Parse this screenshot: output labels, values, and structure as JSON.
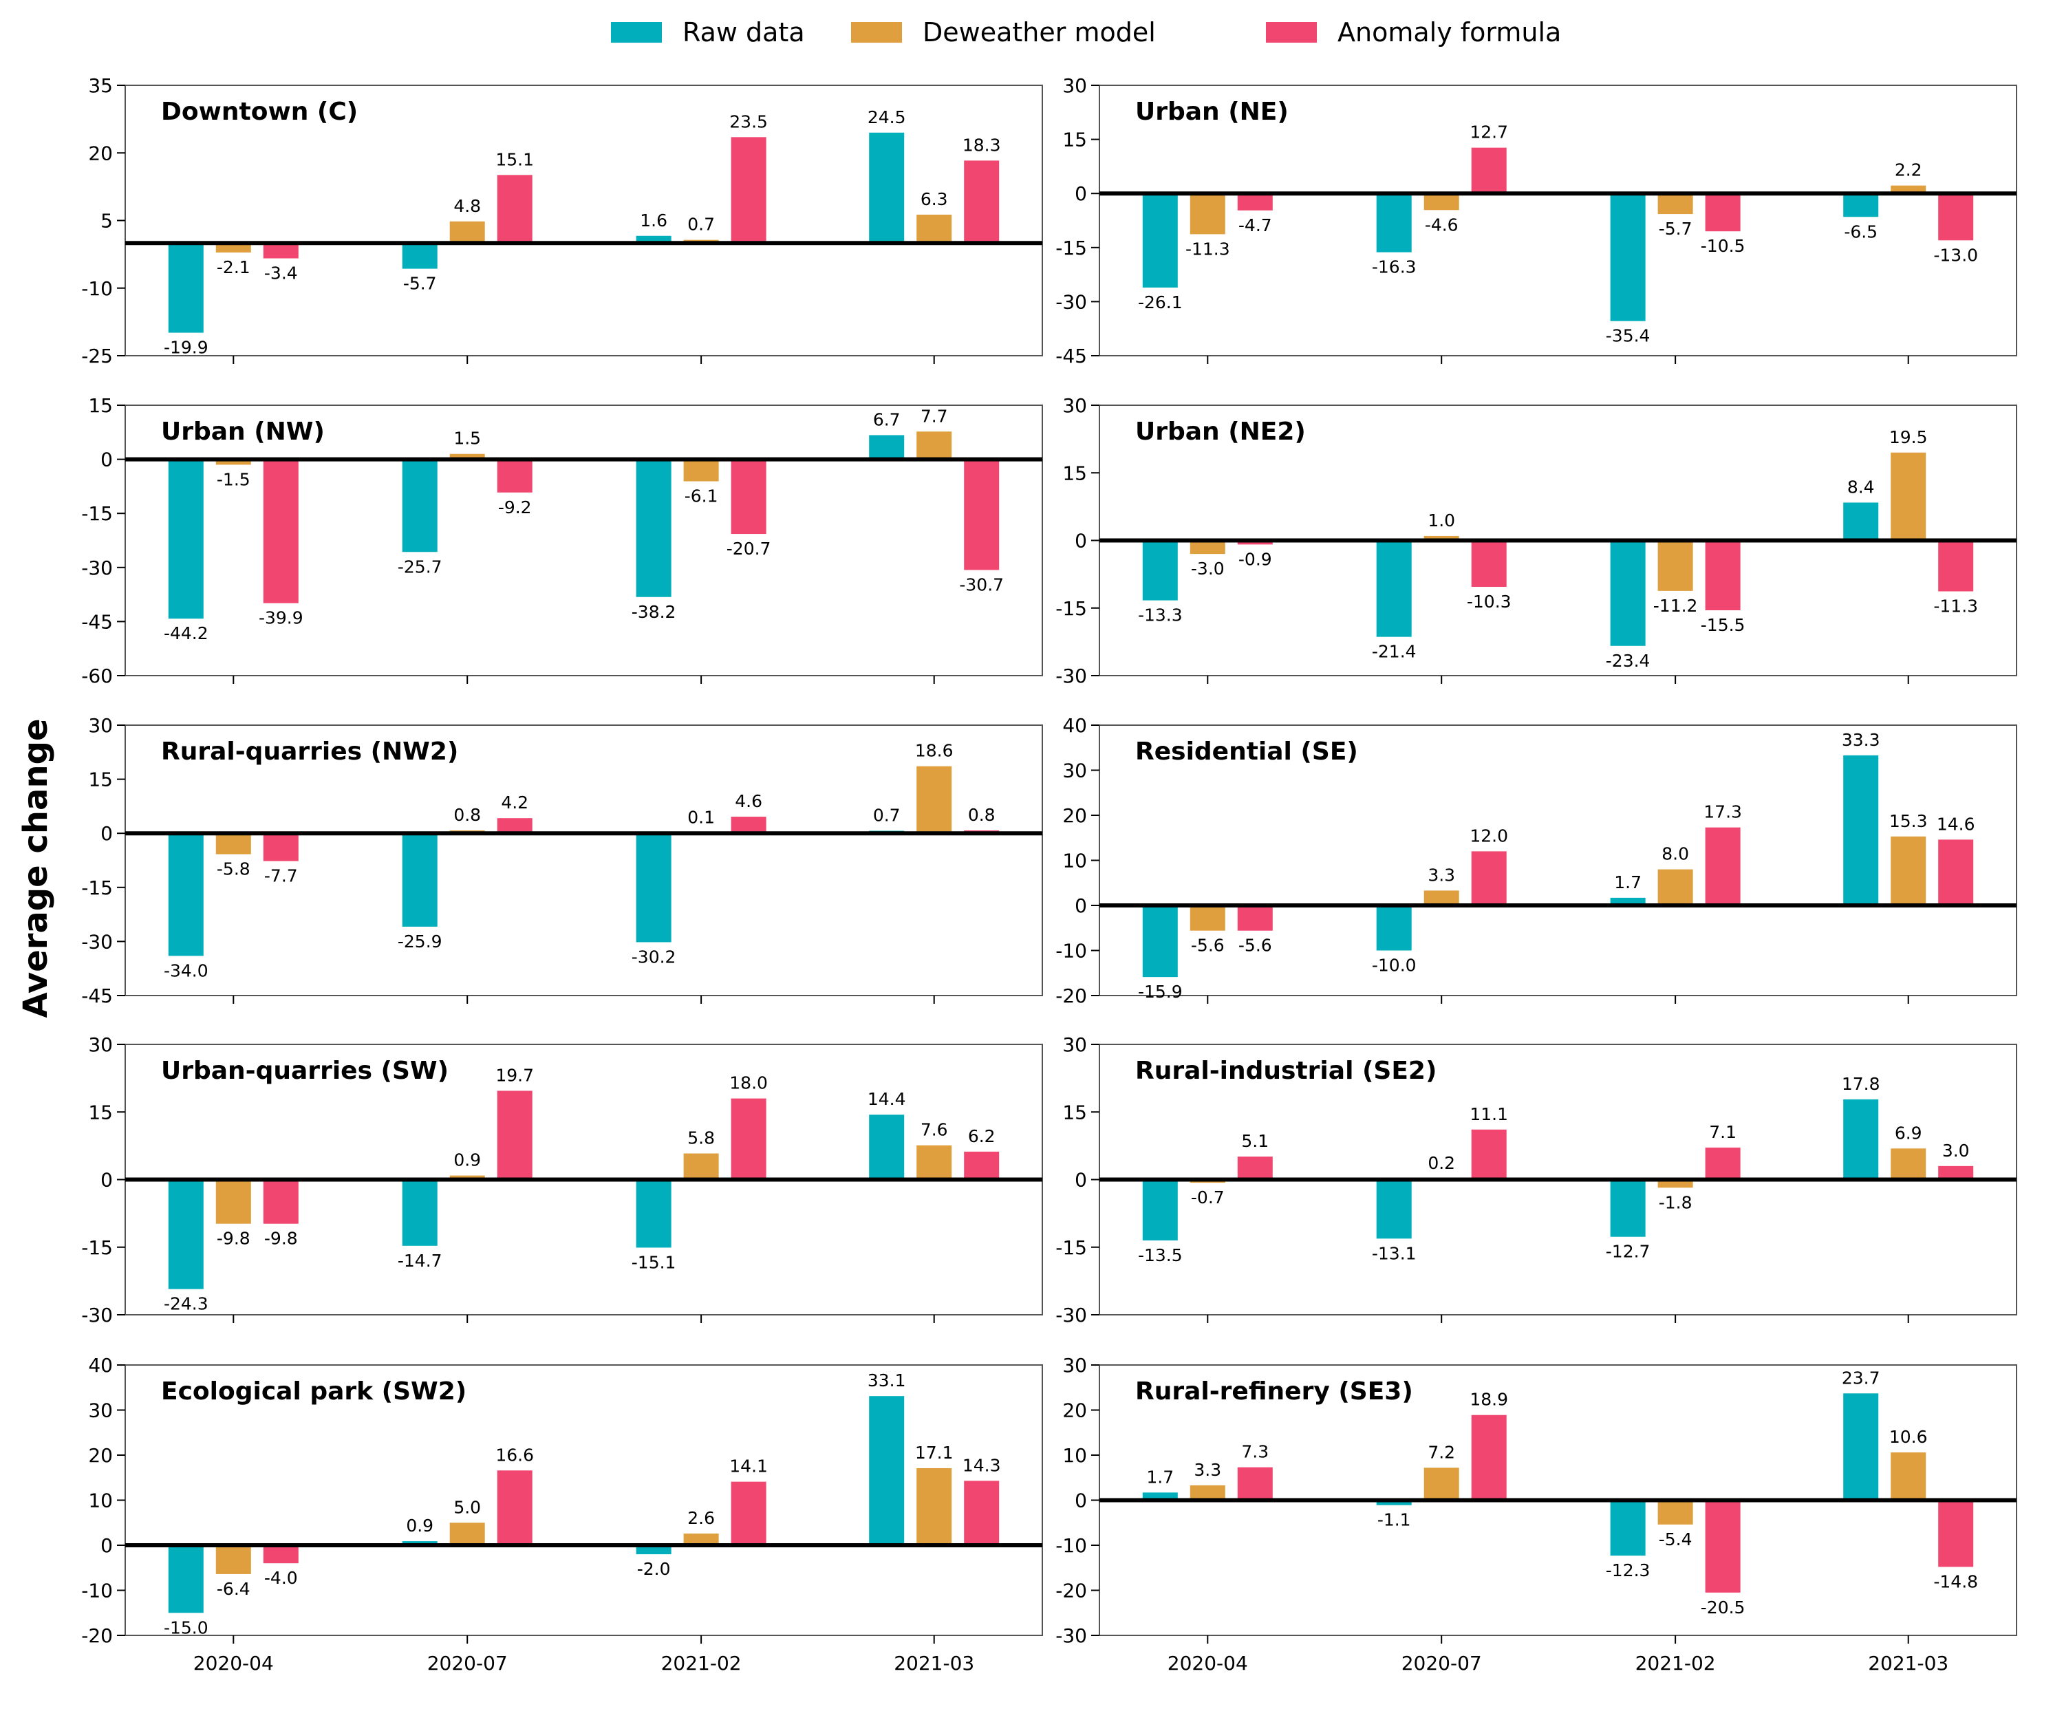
{
  "ylabel": "Average change",
  "legend": [
    {
      "name": "Raw data",
      "color": "#00AFBB"
    },
    {
      "name": "Deweather model",
      "color": "#E09F3E"
    },
    {
      "name": "Anomaly formula",
      "color": "#F0466F"
    }
  ],
  "chart_data": [
    {
      "type": "bar",
      "title": "Downtown (C)",
      "categories": [
        "2020-04",
        "2020-07",
        "2021-02",
        "2021-03"
      ],
      "ylim": [
        -25,
        35
      ],
      "yticks": [
        -25,
        -10,
        5,
        20,
        35
      ],
      "baseline": 0,
      "series": [
        {
          "name": "Raw data",
          "values": [
            -19.9,
            -5.7,
            1.6,
            24.5
          ]
        },
        {
          "name": "Deweather model",
          "values": [
            -2.1,
            4.8,
            0.7,
            6.3
          ]
        },
        {
          "name": "Anomaly formula",
          "values": [
            -3.4,
            15.1,
            23.5,
            18.3
          ]
        }
      ]
    },
    {
      "type": "bar",
      "title": "Urban (NE)",
      "categories": [
        "2020-04",
        "2020-07",
        "2021-02",
        "2021-03"
      ],
      "ylim": [
        -45,
        30
      ],
      "yticks": [
        -45,
        -30,
        -15,
        0,
        15,
        30
      ],
      "baseline": 0,
      "series": [
        {
          "name": "Raw data",
          "values": [
            -26.1,
            -16.3,
            -35.4,
            -6.5
          ]
        },
        {
          "name": "Deweather model",
          "values": [
            -11.3,
            -4.6,
            -5.7,
            2.2
          ]
        },
        {
          "name": "Anomaly formula",
          "values": [
            -4.7,
            12.7,
            -10.5,
            -13.0
          ]
        }
      ]
    },
    {
      "type": "bar",
      "title": "Urban (NW)",
      "categories": [
        "2020-04",
        "2020-07",
        "2021-02",
        "2021-03"
      ],
      "ylim": [
        -60,
        15
      ],
      "yticks": [
        -60,
        -45,
        -30,
        -15,
        0,
        15
      ],
      "baseline": 0,
      "series": [
        {
          "name": "Raw data",
          "values": [
            -44.2,
            -25.7,
            -38.2,
            6.7
          ]
        },
        {
          "name": "Deweather model",
          "values": [
            -1.5,
            1.5,
            -6.1,
            7.7
          ]
        },
        {
          "name": "Anomaly formula",
          "values": [
            -39.9,
            -9.2,
            -20.7,
            -30.7
          ]
        }
      ]
    },
    {
      "type": "bar",
      "title": "Urban (NE2)",
      "categories": [
        "2020-04",
        "2020-07",
        "2021-02",
        "2021-03"
      ],
      "ylim": [
        -30,
        30
      ],
      "yticks": [
        -30,
        -15,
        0,
        15,
        30
      ],
      "baseline": 0,
      "series": [
        {
          "name": "Raw data",
          "values": [
            -13.3,
            -21.4,
            -23.4,
            8.4
          ]
        },
        {
          "name": "Deweather model",
          "values": [
            -3.0,
            1.0,
            -11.2,
            19.5
          ]
        },
        {
          "name": "Anomaly formula",
          "values": [
            -0.9,
            -10.3,
            -15.5,
            -11.3
          ]
        }
      ]
    },
    {
      "type": "bar",
      "title": "Rural-quarries (NW2)",
      "categories": [
        "2020-04",
        "2020-07",
        "2021-02",
        "2021-03"
      ],
      "ylim": [
        -45,
        30
      ],
      "yticks": [
        -45,
        -30,
        -15,
        0,
        15,
        30
      ],
      "baseline": 0,
      "series": [
        {
          "name": "Raw data",
          "values": [
            -34.0,
            -25.9,
            -30.2,
            0.7
          ]
        },
        {
          "name": "Deweather model",
          "values": [
            -5.8,
            0.8,
            0.1,
            18.6
          ]
        },
        {
          "name": "Anomaly formula",
          "values": [
            -7.7,
            4.2,
            4.6,
            0.8
          ]
        }
      ]
    },
    {
      "type": "bar",
      "title": "Residential (SE)",
      "categories": [
        "2020-04",
        "2020-07",
        "2021-02",
        "2021-03"
      ],
      "ylim": [
        -20,
        40
      ],
      "yticks": [
        -20,
        -10,
        0,
        10,
        20,
        30,
        40
      ],
      "baseline": 0,
      "series": [
        {
          "name": "Raw data",
          "values": [
            -15.9,
            -10.0,
            1.7,
            33.3
          ]
        },
        {
          "name": "Deweather model",
          "values": [
            -5.6,
            3.3,
            8.0,
            15.3
          ]
        },
        {
          "name": "Anomaly formula",
          "values": [
            -5.6,
            12.0,
            17.3,
            14.6
          ]
        }
      ]
    },
    {
      "type": "bar",
      "title": "Urban-quarries (SW)",
      "categories": [
        "2020-04",
        "2020-07",
        "2021-02",
        "2021-03"
      ],
      "ylim": [
        -30,
        30
      ],
      "yticks": [
        -30,
        -15,
        0,
        15,
        30
      ],
      "baseline": 0,
      "series": [
        {
          "name": "Raw data",
          "values": [
            -24.3,
            -14.7,
            -15.1,
            14.4
          ]
        },
        {
          "name": "Deweather model",
          "values": [
            -9.8,
            0.9,
            5.8,
            7.6
          ]
        },
        {
          "name": "Anomaly formula",
          "values": [
            -9.8,
            19.7,
            18.0,
            6.2
          ]
        }
      ]
    },
    {
      "type": "bar",
      "title": "Rural-industrial (SE2)",
      "categories": [
        "2020-04",
        "2020-07",
        "2021-02",
        "2021-03"
      ],
      "ylim": [
        -30,
        30
      ],
      "yticks": [
        -30,
        -15,
        0,
        15,
        30
      ],
      "baseline": 0,
      "series": [
        {
          "name": "Raw data",
          "values": [
            -13.5,
            -13.1,
            -12.7,
            17.8
          ]
        },
        {
          "name": "Deweather model",
          "values": [
            -0.7,
            0.2,
            -1.8,
            6.9
          ]
        },
        {
          "name": "Anomaly formula",
          "values": [
            5.1,
            11.1,
            7.1,
            3.0
          ]
        }
      ]
    },
    {
      "type": "bar",
      "title": "Ecological park (SW2)",
      "categories": [
        "2020-04",
        "2020-07",
        "2021-02",
        "2021-03"
      ],
      "ylim": [
        -20,
        40
      ],
      "yticks": [
        -20,
        -10,
        0,
        10,
        20,
        30,
        40
      ],
      "baseline": 0,
      "series": [
        {
          "name": "Raw data",
          "values": [
            -15.0,
            0.9,
            -2.0,
            33.1
          ]
        },
        {
          "name": "Deweather model",
          "values": [
            -6.4,
            5.0,
            2.6,
            17.1
          ]
        },
        {
          "name": "Anomaly formula",
          "values": [
            -4.0,
            16.6,
            14.1,
            14.3
          ]
        }
      ]
    },
    {
      "type": "bar",
      "title": "Rural-refinery (SE3)",
      "categories": [
        "2020-04",
        "2020-07",
        "2021-02",
        "2021-03"
      ],
      "ylim": [
        -30,
        30
      ],
      "yticks": [
        -30,
        -20,
        -10,
        0,
        10,
        20,
        30
      ],
      "baseline": 0,
      "series": [
        {
          "name": "Raw data",
          "values": [
            1.7,
            -1.1,
            -12.3,
            23.7
          ]
        },
        {
          "name": "Deweather model",
          "values": [
            3.3,
            7.2,
            -5.4,
            10.6
          ]
        },
        {
          "name": "Anomaly formula",
          "values": [
            7.3,
            18.9,
            -20.5,
            -14.8
          ]
        }
      ]
    }
  ]
}
